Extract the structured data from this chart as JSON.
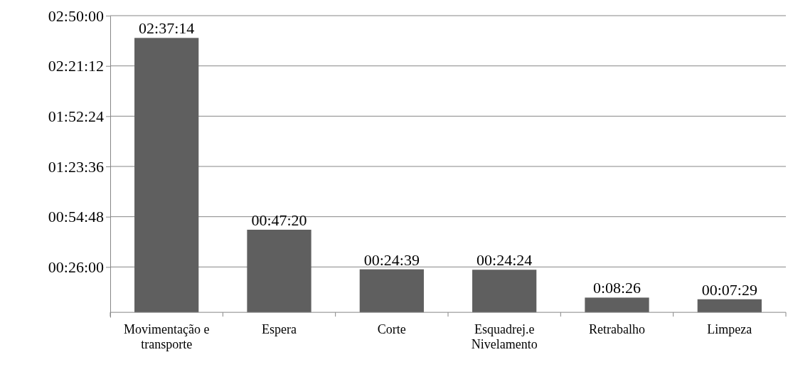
{
  "chart_data": {
    "type": "bar",
    "categories": [
      "Movimentação e transporte",
      "Espera",
      "Corte",
      "Esquadrej.e Nivelamento",
      "Retrabalho",
      "Limpeza"
    ],
    "values": [
      157.2333,
      47.3333,
      24.65,
      24.4,
      8.4333,
      7.4833
    ],
    "value_labels": [
      "02:37:14",
      "00:47:20",
      "00:24:39",
      "00:24:24",
      "0:08:26",
      "00:07:29"
    ],
    "color": "#5f5f5f",
    "ylim": [
      -2.8,
      170
    ],
    "yticks": [
      {
        "value": 26,
        "label": "00:26:00"
      },
      {
        "value": 54.8,
        "label": "00:54:48"
      },
      {
        "value": 83.6,
        "label": "01:23:36"
      },
      {
        "value": 112.4,
        "label": "01:52:24"
      },
      {
        "value": 141.2,
        "label": "02:21:12"
      },
      {
        "value": 170,
        "label": "02:50:00"
      }
    ],
    "grid": "y"
  }
}
